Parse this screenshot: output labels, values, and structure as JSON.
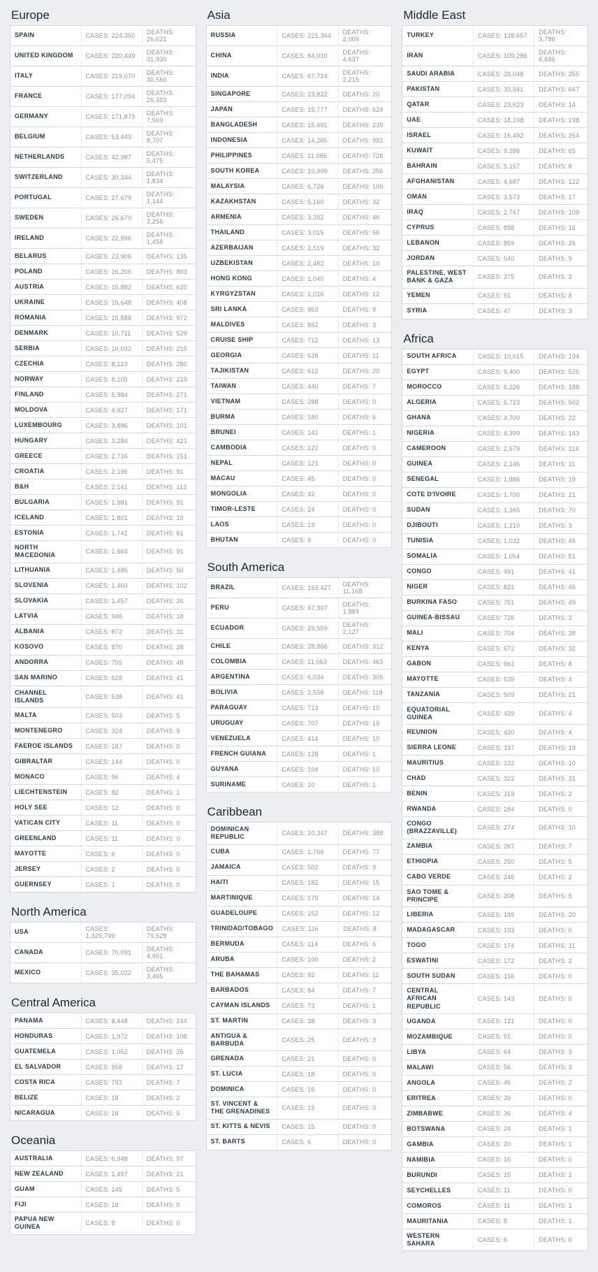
{
  "labels": {
    "cases": "CASES:",
    "deaths": "DEATHS:"
  },
  "layout": [
    [
      "europe",
      "north_america",
      "central_america",
      "oceania"
    ],
    [
      "asia",
      "south_america",
      "caribbean"
    ],
    [
      "middle_east",
      "africa"
    ]
  ],
  "regions": {
    "europe": {
      "title": "Europe",
      "rows": [
        {
          "n": "SPAIN",
          "c": "224,350",
          "d": "26,621"
        },
        {
          "n": "UNITED KINGDOM",
          "c": "220,449",
          "d": "31,930"
        },
        {
          "n": "ITALY",
          "c": "219,070",
          "d": "30,560"
        },
        {
          "n": "FRANCE",
          "c": "177,094",
          "d": "26,383"
        },
        {
          "n": "GERMANY",
          "c": "171,879",
          "d": "7,569"
        },
        {
          "n": "BELGIUM",
          "c": "53,449",
          "d": "8,707"
        },
        {
          "n": "NETHERLANDS",
          "c": "42,987",
          "d": "5,475"
        },
        {
          "n": "SWITZERLAND",
          "c": "30,344",
          "d": "1,834"
        },
        {
          "n": "PORTUGAL",
          "c": "27,679",
          "d": "1,144"
        },
        {
          "n": "SWEDEN",
          "c": "26,670",
          "d": "3,256"
        },
        {
          "n": "IRELAND",
          "c": "22,996",
          "d": "1,458"
        },
        {
          "n": "BELARUS",
          "c": "23,906",
          "d": "135"
        },
        {
          "n": "POLAND",
          "c": "16,206",
          "d": "803"
        },
        {
          "n": "AUSTRIA",
          "c": "15,882",
          "d": "620"
        },
        {
          "n": "UKRAINE",
          "c": "15,648",
          "d": "408"
        },
        {
          "n": "ROMANIA",
          "c": "15,588",
          "d": "972"
        },
        {
          "n": "DENMARK",
          "c": "10,711",
          "d": "529"
        },
        {
          "n": "SERBIA",
          "c": "10,032",
          "d": "215"
        },
        {
          "n": "CZECHIA",
          "c": "8,123",
          "d": "280"
        },
        {
          "n": "NORWAY",
          "c": "8,105",
          "d": "219"
        },
        {
          "n": "FINLAND",
          "c": "5,984",
          "d": "271"
        },
        {
          "n": "MOLDOVA",
          "c": "4,927",
          "d": "171"
        },
        {
          "n": "LUXEMBOURG",
          "c": "3,886",
          "d": "101"
        },
        {
          "n": "HUNGARY",
          "c": "3,284",
          "d": "421"
        },
        {
          "n": "GREECE",
          "c": "2,716",
          "d": "151"
        },
        {
          "n": "CROATIA",
          "c": "2,196",
          "d": "91"
        },
        {
          "n": "B&H",
          "c": "2,141",
          "d": "113"
        },
        {
          "n": "BULGARIA",
          "c": "1,981",
          "d": "91"
        },
        {
          "n": "ICELAND",
          "c": "1,801",
          "d": "10"
        },
        {
          "n": "ESTONIA",
          "c": "1,741",
          "d": "61"
        },
        {
          "n": "NORTH MACEDONIA",
          "c": "1,664",
          "d": "91"
        },
        {
          "n": "LITHUANIA",
          "c": "1,485",
          "d": "50"
        },
        {
          "n": "SLOVENIA",
          "c": "1,460",
          "d": "102"
        },
        {
          "n": "SLOVAKIA",
          "c": "1,457",
          "d": "26"
        },
        {
          "n": "LATVIA",
          "c": "946",
          "d": "18"
        },
        {
          "n": "ALBANIA",
          "c": "872",
          "d": "31"
        },
        {
          "n": "KOSOVO",
          "c": "870",
          "d": "28"
        },
        {
          "n": "ANDORRA",
          "c": "755",
          "d": "48"
        },
        {
          "n": "SAN MARINO",
          "c": "628",
          "d": "41"
        },
        {
          "n": "CHANNEL ISLANDS",
          "c": "538",
          "d": "41"
        },
        {
          "n": "MALTA",
          "c": "503",
          "d": "5"
        },
        {
          "n": "MONTENEGRO",
          "c": "324",
          "d": "9"
        },
        {
          "n": "FAEROE ISLANDS",
          "c": "187",
          "d": "0"
        },
        {
          "n": "GIBRALTAR",
          "c": "144",
          "d": "0"
        },
        {
          "n": "MONACO",
          "c": "96",
          "d": "4"
        },
        {
          "n": "LIECHTENSTEIN",
          "c": "82",
          "d": "1"
        },
        {
          "n": "HOLY SEE",
          "c": "12",
          "d": "0"
        },
        {
          "n": "VATICAN CITY",
          "c": "11",
          "d": "0"
        },
        {
          "n": "GREENLAND",
          "c": "11",
          "d": "0"
        },
        {
          "n": "MAYOTTE",
          "c": "6",
          "d": "0"
        },
        {
          "n": "JERSEY",
          "c": "2",
          "d": "0"
        },
        {
          "n": "GUERNSEY",
          "c": "1",
          "d": "0"
        }
      ]
    },
    "north_america": {
      "title": "North America",
      "rows": [
        {
          "n": "USA",
          "c": "1,329,799",
          "d": "79,528"
        },
        {
          "n": "CANADA",
          "c": "70,091",
          "d": "4,991"
        },
        {
          "n": "MEXICO",
          "c": "35,022",
          "d": "3,465"
        }
      ]
    },
    "central_america": {
      "title": "Central America",
      "rows": [
        {
          "n": "PANAMA",
          "c": "8,448",
          "d": "244"
        },
        {
          "n": "HONDURAS",
          "c": "1,972",
          "d": "108"
        },
        {
          "n": "GUATEMELA",
          "c": "1,052",
          "d": "26"
        },
        {
          "n": "EL SALVADOR",
          "c": "958",
          "d": "17"
        },
        {
          "n": "COSTA RICA",
          "c": "792",
          "d": "7"
        },
        {
          "n": "BELIZE",
          "c": "18",
          "d": "2"
        },
        {
          "n": "NICARAGUA",
          "c": "16",
          "d": "5"
        }
      ]
    },
    "oceania": {
      "title": "Oceania",
      "rows": [
        {
          "n": "AUSTRALIA",
          "c": "6,948",
          "d": "97"
        },
        {
          "n": "NEW ZEALAND",
          "c": "1,497",
          "d": "21"
        },
        {
          "n": "GUAM",
          "c": "145",
          "d": "5"
        },
        {
          "n": "FIJI",
          "c": "18",
          "d": "0"
        },
        {
          "n": "PAPUA NEW GUINEA",
          "c": "8",
          "d": "0"
        }
      ]
    },
    "asia": {
      "title": "Asia",
      "rows": [
        {
          "n": "RUSSIA",
          "c": "221,344",
          "d": "2,009"
        },
        {
          "n": "CHINA",
          "c": "84,010",
          "d": "4,637"
        },
        {
          "n": "INDIA",
          "c": "67,724",
          "d": "2,215"
        },
        {
          "n": "SINGAPORE",
          "c": "23,822",
          "d": "20"
        },
        {
          "n": "JAPAN",
          "c": "15,777",
          "d": "624"
        },
        {
          "n": "BANGLADESH",
          "c": "15,691",
          "d": "239"
        },
        {
          "n": "INDONESIA",
          "c": "14,265",
          "d": "991"
        },
        {
          "n": "PHILIPPINES",
          "c": "11,086",
          "d": "726"
        },
        {
          "n": "SOUTH KOREA",
          "c": "10,909",
          "d": "256"
        },
        {
          "n": "MALAYSIA",
          "c": "6,726",
          "d": "109"
        },
        {
          "n": "KAZAKHSTAN",
          "c": "5,160",
          "d": "32"
        },
        {
          "n": "ARMENIA",
          "c": "3,392",
          "d": "46"
        },
        {
          "n": "THAILAND",
          "c": "3,015",
          "d": "56"
        },
        {
          "n": "AZERBAIJAN",
          "c": "2,519",
          "d": "32"
        },
        {
          "n": "UZBEKISTAN",
          "c": "2,482",
          "d": "10"
        },
        {
          "n": "HONG KONG",
          "c": "1,040",
          "d": "4"
        },
        {
          "n": "KYRGYZSTAN",
          "c": "1,016",
          "d": "12"
        },
        {
          "n": "SRI LANKA",
          "c": "863",
          "d": "9"
        },
        {
          "n": "MALDIVES",
          "c": "862",
          "d": "3"
        },
        {
          "n": "CRUISE SHIP",
          "c": "712",
          "d": "13"
        },
        {
          "n": "GEORGIA",
          "c": "638",
          "d": "11"
        },
        {
          "n": "TAJIKISTAN",
          "c": "612",
          "d": "20"
        },
        {
          "n": "TAIWAN",
          "c": "440",
          "d": "7"
        },
        {
          "n": "VIETNAM",
          "c": "288",
          "d": "0"
        },
        {
          "n": "BURMA",
          "c": "180",
          "d": "6"
        },
        {
          "n": "BRUNEI",
          "c": "141",
          "d": "1"
        },
        {
          "n": "CAMBODIA",
          "c": "122",
          "d": "0"
        },
        {
          "n": "NEPAL",
          "c": "121",
          "d": "0"
        },
        {
          "n": "MACAU",
          "c": "45",
          "d": "0"
        },
        {
          "n": "MONGOLIA",
          "c": "42",
          "d": "0"
        },
        {
          "n": "TIMOR-LESTE",
          "c": "24",
          "d": "0"
        },
        {
          "n": "LAOS",
          "c": "19",
          "d": "0"
        },
        {
          "n": "BHUTAN",
          "c": "9",
          "d": "0"
        }
      ]
    },
    "south_america": {
      "title": "South America",
      "rows": [
        {
          "n": "BRAZIL",
          "c": "163,427",
          "d": "11,168"
        },
        {
          "n": "PERU",
          "c": "67,307",
          "d": "1,889"
        },
        {
          "n": "ECUADOR",
          "c": "29,559",
          "d": "2,127"
        },
        {
          "n": "CHILE",
          "c": "28,866",
          "d": "312"
        },
        {
          "n": "COLOMBIA",
          "c": "11,063",
          "d": "463"
        },
        {
          "n": "ARGENTINA",
          "c": "6,034",
          "d": "305"
        },
        {
          "n": "BOLIVIA",
          "c": "2,556",
          "d": "118"
        },
        {
          "n": "PARAGUAY",
          "c": "713",
          "d": "10"
        },
        {
          "n": "URUGUAY",
          "c": "707",
          "d": "19"
        },
        {
          "n": "VENEZUELA",
          "c": "414",
          "d": "10"
        },
        {
          "n": "FRENCH GUIANA",
          "c": "128",
          "d": "1"
        },
        {
          "n": "GUYANA",
          "c": "104",
          "d": "10"
        },
        {
          "n": "SURINAME",
          "c": "10",
          "d": "1"
        }
      ]
    },
    "caribbean": {
      "title": "Caribbean",
      "rows": [
        {
          "n": "DOMINICAN REPUBLIC",
          "c": "10,347",
          "d": "388"
        },
        {
          "n": "CUBA",
          "c": "1,766",
          "d": "77"
        },
        {
          "n": "JAMAICA",
          "c": "502",
          "d": "9"
        },
        {
          "n": "HAITI",
          "c": "182",
          "d": "15"
        },
        {
          "n": "MARTINIQUE",
          "c": "179",
          "d": "14"
        },
        {
          "n": "GUADELOUPE",
          "c": "152",
          "d": "12"
        },
        {
          "n": "TRINIDAD/TOBAGO",
          "c": "116",
          "d": "8"
        },
        {
          "n": "BERMUDA",
          "c": "114",
          "d": "6"
        },
        {
          "n": "ARUBA",
          "c": "100",
          "d": "2"
        },
        {
          "n": "THE BAHAMAS",
          "c": "92",
          "d": "11"
        },
        {
          "n": "BARBADOS",
          "c": "84",
          "d": "7"
        },
        {
          "n": "CAYMAN ISLANDS",
          "c": "73",
          "d": "1"
        },
        {
          "n": "ST. MARTIN",
          "c": "38",
          "d": "3"
        },
        {
          "n": "ANTIGUA & BARBUDA",
          "c": "25",
          "d": "3"
        },
        {
          "n": "GRENADA",
          "c": "21",
          "d": "0"
        },
        {
          "n": "ST. LUCIA",
          "c": "18",
          "d": "0"
        },
        {
          "n": "DOMINICA",
          "c": "16",
          "d": "0"
        },
        {
          "n": "ST. VINCENT & THE GRENADINES",
          "c": "15",
          "d": "0"
        },
        {
          "n": "ST. KITTS & NEVIS",
          "c": "15",
          "d": "0"
        },
        {
          "n": "ST. BARTS",
          "c": "6",
          "d": "0"
        }
      ]
    },
    "middle_east": {
      "title": "Middle East",
      "rows": [
        {
          "n": "TURKEY",
          "c": "138,657",
          "d": "3,786"
        },
        {
          "n": "IRAN",
          "c": "109,286",
          "d": "6,685"
        },
        {
          "n": "SAUDI ARABIA",
          "c": "39,048",
          "d": "255"
        },
        {
          "n": "PAKISTAN",
          "c": "30,941",
          "d": "667"
        },
        {
          "n": "QATAR",
          "c": "23,623",
          "d": "14"
        },
        {
          "n": "UAE",
          "c": "18,198",
          "d": "198"
        },
        {
          "n": "ISRAEL",
          "c": "16,492",
          "d": "254"
        },
        {
          "n": "KUWAIT",
          "c": "9,286",
          "d": "65"
        },
        {
          "n": "BAHRAIN",
          "c": "5,157",
          "d": "8"
        },
        {
          "n": "AFGHANISTAN",
          "c": "4,687",
          "d": "122"
        },
        {
          "n": "OMAN",
          "c": "3,573",
          "d": "17"
        },
        {
          "n": "IRAQ",
          "c": "2,767",
          "d": "109"
        },
        {
          "n": "CYPRUS",
          "c": "898",
          "d": "16"
        },
        {
          "n": "LEBANON",
          "c": "859",
          "d": "26"
        },
        {
          "n": "JORDAN",
          "c": "540",
          "d": "9"
        },
        {
          "n": "PALESTINE, WEST BANK & GAZA",
          "c": "375",
          "d": "2"
        },
        {
          "n": "YEMEN",
          "c": "51",
          "d": "8"
        },
        {
          "n": "SYRIA",
          "c": "47",
          "d": "3"
        }
      ]
    },
    "africa": {
      "title": "Africa",
      "rows": [
        {
          "n": "SOUTH AFRICA",
          "c": "10,015",
          "d": "194"
        },
        {
          "n": "EGYPT",
          "c": "9,400",
          "d": "525"
        },
        {
          "n": "MOROCCO",
          "c": "6,226",
          "d": "188"
        },
        {
          "n": "ALGERIA",
          "c": "5,723",
          "d": "502"
        },
        {
          "n": "GHANA",
          "c": "4,700",
          "d": "22"
        },
        {
          "n": "NIGERIA",
          "c": "4,399",
          "d": "143"
        },
        {
          "n": "CAMEROON",
          "c": "2,579",
          "d": "114"
        },
        {
          "n": "GUINEA",
          "c": "2,146",
          "d": "11"
        },
        {
          "n": "SENEGAL",
          "c": "1,886",
          "d": "19"
        },
        {
          "n": "COTE D'IVOIRE",
          "c": "1,700",
          "d": "21"
        },
        {
          "n": "SUDAN",
          "c": "1,365",
          "d": "70"
        },
        {
          "n": "DJIBOUTI",
          "c": "1,210",
          "d": "3"
        },
        {
          "n": "TUNISIA",
          "c": "1,032",
          "d": "45"
        },
        {
          "n": "SOMALIA",
          "c": "1,054",
          "d": "51"
        },
        {
          "n": "CONGO",
          "c": "991",
          "d": "41"
        },
        {
          "n": "NIGER",
          "c": "821",
          "d": "46"
        },
        {
          "n": "BURKINA FASO",
          "c": "751",
          "d": "49"
        },
        {
          "n": "GUINEA-BISSAU",
          "c": "726",
          "d": "3"
        },
        {
          "n": "MALI",
          "c": "704",
          "d": "38"
        },
        {
          "n": "KENYA",
          "c": "672",
          "d": "32"
        },
        {
          "n": "GABON",
          "c": "661",
          "d": "8"
        },
        {
          "n": "MAYOTTE",
          "c": "539",
          "d": "4"
        },
        {
          "n": "TANZANIA",
          "c": "509",
          "d": "21"
        },
        {
          "n": "EQUATORIAL GUINEA",
          "c": "439",
          "d": "4"
        },
        {
          "n": "REUNION",
          "c": "420",
          "d": "4"
        },
        {
          "n": "SIERRA LEONE",
          "c": "337",
          "d": "19"
        },
        {
          "n": "MAURITIUS",
          "c": "332",
          "d": "10"
        },
        {
          "n": "CHAD",
          "c": "322",
          "d": "31"
        },
        {
          "n": "BENIN",
          "c": "319",
          "d": "2"
        },
        {
          "n": "RWANDA",
          "c": "284",
          "d": "0"
        },
        {
          "n": "CONGO (BRAZZAVILLE)",
          "c": "274",
          "d": "10"
        },
        {
          "n": "ZAMBIA",
          "c": "267",
          "d": "7"
        },
        {
          "n": "ETHIOPIA",
          "c": "250",
          "d": "5"
        },
        {
          "n": "CABO VERDE",
          "c": "246",
          "d": "2"
        },
        {
          "n": "SAO TOME & PRINCIPE",
          "c": "208",
          "d": "5"
        },
        {
          "n": "LIBERIA",
          "c": "199",
          "d": "20"
        },
        {
          "n": "MADAGASCAR",
          "c": "193",
          "d": "0"
        },
        {
          "n": "TOGO",
          "c": "174",
          "d": "11"
        },
        {
          "n": "ESWATINI",
          "c": "172",
          "d": "2"
        },
        {
          "n": "SOUTH SUDAN",
          "c": "156",
          "d": "0"
        },
        {
          "n": "CENTRAL AFRICAN REPUBLIC",
          "c": "143",
          "d": "0"
        },
        {
          "n": "UGANDA",
          "c": "121",
          "d": "0"
        },
        {
          "n": "MOZAMBIQUE",
          "c": "91",
          "d": "0"
        },
        {
          "n": "LIBYA",
          "c": "64",
          "d": "3"
        },
        {
          "n": "MALAWI",
          "c": "56",
          "d": "3"
        },
        {
          "n": "ANGOLA",
          "c": "45",
          "d": "2"
        },
        {
          "n": "ERITREA",
          "c": "39",
          "d": "0"
        },
        {
          "n": "ZIMBABWE",
          "c": "36",
          "d": "4"
        },
        {
          "n": "BOTSWANA",
          "c": "24",
          "d": "1"
        },
        {
          "n": "GAMBIA",
          "c": "20",
          "d": "1"
        },
        {
          "n": "NAMIBIA",
          "c": "16",
          "d": "0"
        },
        {
          "n": "BURUNDI",
          "c": "15",
          "d": "1"
        },
        {
          "n": "SEYCHELLES",
          "c": "11",
          "d": "0"
        },
        {
          "n": "COMOROS",
          "c": "11",
          "d": "1"
        },
        {
          "n": "MAURITANIA",
          "c": "8",
          "d": "1"
        },
        {
          "n": "WESTERN SAHARA",
          "c": "6",
          "d": "0"
        }
      ]
    }
  }
}
